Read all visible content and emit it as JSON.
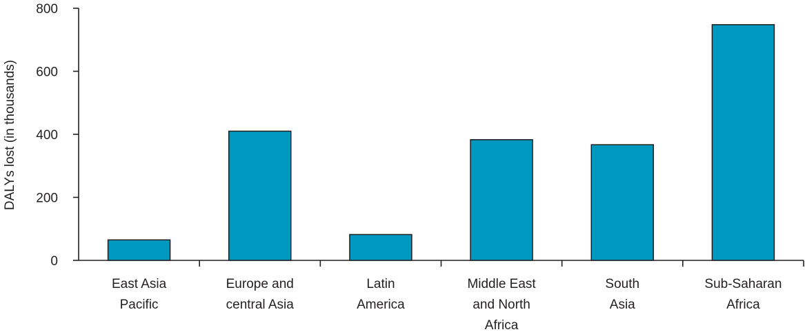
{
  "chart_data": {
    "type": "bar",
    "title": "",
    "xlabel": "",
    "ylabel": "DALYs lost (in thousands)",
    "categories": [
      [
        "East Asia",
        "Pacific"
      ],
      [
        "Europe and",
        "central Asia"
      ],
      [
        "Latin",
        "America"
      ],
      [
        "Middle East",
        "and North",
        "Africa"
      ],
      [
        "South",
        "Asia"
      ],
      [
        "Sub-Saharan",
        "Africa"
      ]
    ],
    "values": [
      65,
      410,
      82,
      383,
      367,
      748
    ],
    "ylim": [
      0,
      800
    ],
    "yticks": [
      "0",
      "200",
      "400",
      "600",
      "800"
    ],
    "bar_color": "#0098bf",
    "bar_stroke": "#231f20",
    "grid": false
  }
}
